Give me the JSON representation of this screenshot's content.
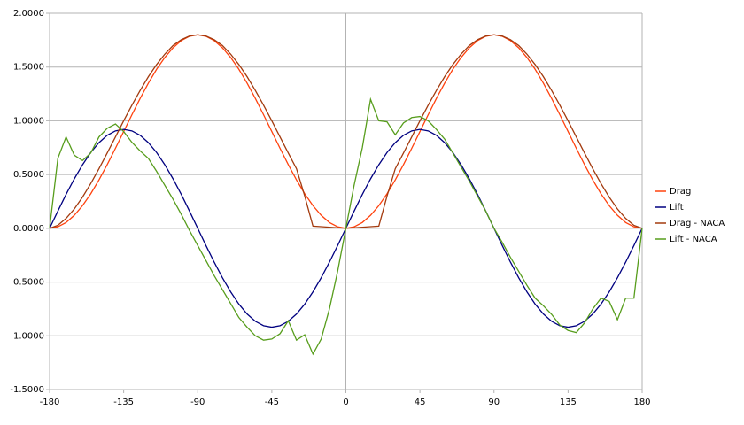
{
  "chart_data": {
    "type": "line",
    "x": [
      -180,
      -175,
      -170,
      -165,
      -160,
      -155,
      -150,
      -145,
      -140,
      -135,
      -130,
      -125,
      -120,
      -115,
      -110,
      -105,
      -100,
      -95,
      -90,
      -85,
      -80,
      -75,
      -70,
      -65,
      -60,
      -55,
      -50,
      -45,
      -40,
      -35,
      -30,
      -25,
      -20,
      -15,
      -10,
      -5,
      0,
      5,
      10,
      15,
      20,
      25,
      30,
      35,
      40,
      45,
      50,
      55,
      60,
      65,
      70,
      75,
      80,
      85,
      90,
      95,
      100,
      105,
      110,
      115,
      120,
      125,
      130,
      135,
      140,
      145,
      150,
      155,
      160,
      165,
      170,
      175,
      180
    ],
    "series": [
      {
        "name": "Drag",
        "color": "#ff420e",
        "values": [
          0,
          0.014,
          0.054,
          0.121,
          0.211,
          0.321,
          0.45,
          0.592,
          0.744,
          0.9,
          1.056,
          1.208,
          1.35,
          1.479,
          1.589,
          1.679,
          1.746,
          1.786,
          1.8,
          1.786,
          1.746,
          1.679,
          1.589,
          1.479,
          1.35,
          1.208,
          1.056,
          0.9,
          0.744,
          0.592,
          0.45,
          0.321,
          0.211,
          0.121,
          0.054,
          0.014,
          0,
          0.014,
          0.054,
          0.121,
          0.211,
          0.321,
          0.45,
          0.592,
          0.744,
          0.9,
          1.056,
          1.208,
          1.35,
          1.479,
          1.589,
          1.679,
          1.746,
          1.786,
          1.8,
          1.786,
          1.746,
          1.679,
          1.589,
          1.479,
          1.35,
          1.208,
          1.056,
          0.9,
          0.744,
          0.592,
          0.45,
          0.321,
          0.211,
          0.121,
          0.054,
          0.014,
          0
        ]
      },
      {
        "name": "Lift",
        "color": "#000080",
        "values": [
          0,
          0.16,
          0.315,
          0.46,
          0.591,
          0.705,
          0.797,
          0.865,
          0.906,
          0.92,
          0.906,
          0.865,
          0.797,
          0.705,
          0.591,
          0.46,
          0.315,
          0.16,
          0,
          -0.16,
          -0.315,
          -0.46,
          -0.591,
          -0.705,
          -0.797,
          -0.865,
          -0.906,
          -0.92,
          -0.906,
          -0.865,
          -0.797,
          -0.705,
          -0.591,
          -0.46,
          -0.315,
          -0.16,
          0,
          0.16,
          0.315,
          0.46,
          0.591,
          0.705,
          0.797,
          0.865,
          0.906,
          0.92,
          0.906,
          0.865,
          0.797,
          0.705,
          0.591,
          0.46,
          0.315,
          0.16,
          0,
          -0.16,
          -0.315,
          -0.46,
          -0.591,
          -0.705,
          -0.797,
          -0.865,
          -0.906,
          -0.92,
          -0.906,
          -0.865,
          -0.797,
          -0.705,
          -0.591,
          -0.46,
          -0.315,
          -0.16,
          0
        ]
      },
      {
        "name": "Drag - NACA",
        "color": "#a33a0e",
        "values": [
          0,
          0.028,
          0.092,
          0.18,
          0.29,
          0.416,
          0.554,
          0.7,
          0.85,
          1.0,
          1.145,
          1.282,
          1.41,
          1.523,
          1.62,
          1.7,
          1.754,
          1.789,
          1.8,
          1.789,
          1.754,
          1.7,
          1.62,
          1.523,
          1.41,
          1.282,
          1.145,
          1.0,
          0.85,
          0.7,
          0.554,
          0.3,
          0.02,
          0.015,
          0.01,
          0.005,
          0,
          0.005,
          0.01,
          0.015,
          0.02,
          0.3,
          0.554,
          0.7,
          0.85,
          1.0,
          1.145,
          1.282,
          1.41,
          1.523,
          1.62,
          1.7,
          1.754,
          1.789,
          1.8,
          1.789,
          1.754,
          1.7,
          1.62,
          1.523,
          1.41,
          1.282,
          1.145,
          1.0,
          0.85,
          0.7,
          0.554,
          0.416,
          0.29,
          0.18,
          0.092,
          0.028,
          0
        ]
      },
      {
        "name": "Lift - NACA",
        "color": "#579d1c",
        "values": [
          0,
          0.65,
          0.85,
          0.68,
          0.63,
          0.7,
          0.85,
          0.93,
          0.97,
          0.9,
          0.8,
          0.72,
          0.65,
          0.53,
          0.4,
          0.27,
          0.13,
          -0.02,
          -0.16,
          -0.3,
          -0.44,
          -0.57,
          -0.7,
          -0.83,
          -0.92,
          -1.0,
          -1.04,
          -1.03,
          -0.98,
          -0.86,
          -1.04,
          -0.99,
          -1.17,
          -1.03,
          -0.75,
          -0.4,
          0,
          0.4,
          0.75,
          1.2,
          1.0,
          0.99,
          0.87,
          0.98,
          1.03,
          1.04,
          1.0,
          0.92,
          0.83,
          0.7,
          0.57,
          0.44,
          0.3,
          0.16,
          0,
          -0.13,
          -0.27,
          -0.4,
          -0.53,
          -0.65,
          -0.72,
          -0.8,
          -0.9,
          -0.95,
          -0.97,
          -0.88,
          -0.75,
          -0.65,
          -0.68,
          -0.85,
          -0.65,
          -0.65,
          0
        ]
      }
    ],
    "xlim": [
      -180,
      180
    ],
    "xticks": [
      -180,
      -135,
      -90,
      -45,
      0,
      45,
      90,
      135,
      180
    ],
    "ylim": [
      -1.5,
      2.0
    ],
    "yticks": [
      {
        "value": -1.5,
        "label": "-1.5000"
      },
      {
        "value": -1.0,
        "label": "-1.0000"
      },
      {
        "value": -0.5,
        "label": "-0.5000"
      },
      {
        "value": 0,
        "label": "0.0000"
      },
      {
        "value": 0.5,
        "label": "0.5000"
      },
      {
        "value": 1.0,
        "label": "1.0000"
      },
      {
        "value": 1.5,
        "label": "1.5000"
      },
      {
        "value": 2.0,
        "label": "2.0000"
      }
    ],
    "grid": true,
    "legend": "right"
  }
}
